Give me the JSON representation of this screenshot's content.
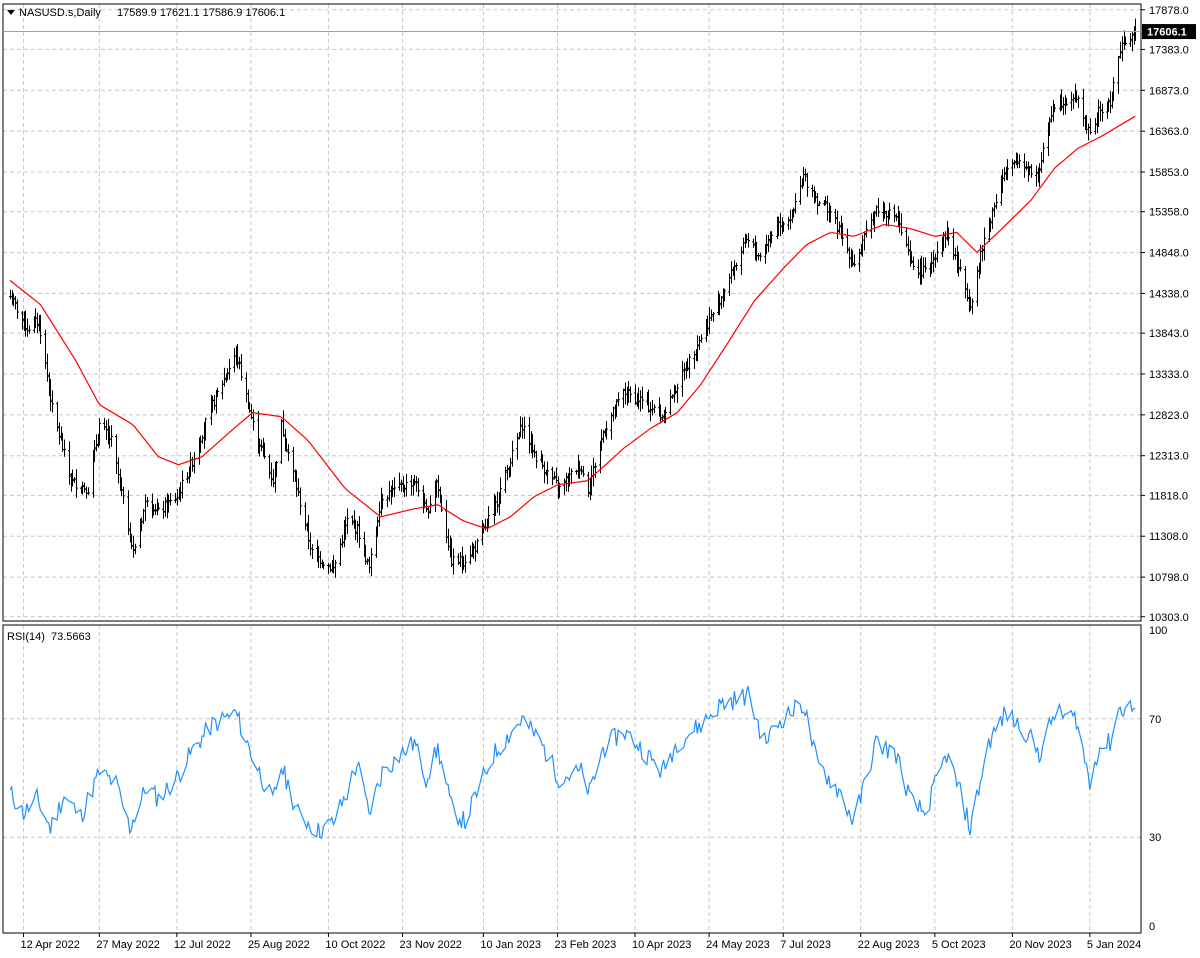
{
  "colors": {
    "background": "#ffffff",
    "grid": "#c8c8c8",
    "bars": "#000000",
    "ma_line": "#ff0000",
    "rsi_line": "#1e90ff",
    "price_tag_bg": "#000000",
    "price_tag_text": "#ffffff"
  },
  "header": {
    "menu_icon": "triangle-down-icon",
    "symbol": "NASUSD.s,Daily",
    "ohlc": "17589.9 17621.1 17586.9 17606.1"
  },
  "chart_data": [
    {
      "type": "ohlc",
      "symbol": "NASUSD.s",
      "timeframe": "Daily",
      "price_ticks": [
        "17878.0",
        "17383.0",
        "16873.0",
        "16363.0",
        "15853.0",
        "15358.0",
        "14848.0",
        "14338.0",
        "13843.0",
        "13333.0",
        "12823.0",
        "12313.0",
        "11818.0",
        "11308.0",
        "10798.0",
        "10303.0"
      ],
      "ylim": [
        10250,
        17950
      ],
      "current_price": "17606.1",
      "x_ticks": [
        "12 Apr 2022",
        "27 May 2022",
        "12 Jul 2022",
        "25 Aug 2022",
        "10 Oct 2022",
        "23 Nov 2022",
        "10 Jan 2023",
        "23 Feb 2023",
        "10 Apr 2023",
        "24 May 2023",
        "7 Jul 2023",
        "22 Aug 2023",
        "5 Oct 2023",
        "20 Nov 2023",
        "5 Jan 2024"
      ],
      "close_anchors": [
        [
          "2022-04-04",
          14300
        ],
        [
          "2022-04-14",
          13900
        ],
        [
          "2022-04-21",
          14000
        ],
        [
          "2022-04-29",
          12900
        ],
        [
          "2022-05-10",
          12000
        ],
        [
          "2022-05-20",
          11900
        ],
        [
          "2022-05-27",
          12700
        ],
        [
          "2022-06-03",
          12500
        ],
        [
          "2022-06-16",
          11100
        ],
        [
          "2022-06-24",
          11800
        ],
        [
          "2022-07-01",
          11600
        ],
        [
          "2022-07-12",
          11800
        ],
        [
          "2022-07-22",
          12300
        ],
        [
          "2022-08-01",
          12900
        ],
        [
          "2022-08-16",
          13600
        ],
        [
          "2022-08-26",
          12700
        ],
        [
          "2022-09-07",
          12000
        ],
        [
          "2022-09-12",
          12700
        ],
        [
          "2022-09-20",
          12000
        ],
        [
          "2022-09-30",
          11100
        ],
        [
          "2022-10-13",
          10900
        ],
        [
          "2022-10-21",
          11500
        ],
        [
          "2022-10-27",
          11400
        ],
        [
          "2022-11-03",
          10900
        ],
        [
          "2022-11-10",
          11800
        ],
        [
          "2022-11-30",
          12000
        ],
        [
          "2022-12-07",
          11600
        ],
        [
          "2022-12-13",
          12000
        ],
        [
          "2022-12-22",
          11000
        ],
        [
          "2022-12-29",
          11000
        ],
        [
          "2023-01-06",
          11200
        ],
        [
          "2023-01-17",
          11700
        ],
        [
          "2023-02-02",
          12700
        ],
        [
          "2023-02-10",
          12300
        ],
        [
          "2023-02-24",
          11900
        ],
        [
          "2023-03-08",
          12200
        ],
        [
          "2023-03-13",
          11900
        ],
        [
          "2023-03-22",
          12600
        ],
        [
          "2023-04-03",
          13100
        ],
        [
          "2023-04-14",
          13000
        ],
        [
          "2023-04-26",
          12800
        ],
        [
          "2023-05-05",
          13200
        ],
        [
          "2023-05-19",
          13800
        ],
        [
          "2023-05-31",
          14300
        ],
        [
          "2023-06-15",
          15000
        ],
        [
          "2023-06-23",
          14800
        ],
        [
          "2023-07-03",
          15200
        ],
        [
          "2023-07-12",
          15300
        ],
        [
          "2023-07-19",
          15800
        ],
        [
          "2023-07-27",
          15500
        ],
        [
          "2023-08-03",
          15400
        ],
        [
          "2023-08-18",
          14700
        ],
        [
          "2023-08-31",
          15400
        ],
        [
          "2023-09-12",
          15300
        ],
        [
          "2023-09-21",
          14700
        ],
        [
          "2023-09-29",
          14600
        ],
        [
          "2023-10-12",
          15100
        ],
        [
          "2023-10-20",
          14600
        ],
        [
          "2023-10-26",
          14200
        ],
        [
          "2023-11-03",
          15000
        ],
        [
          "2023-11-14",
          15800
        ],
        [
          "2023-11-24",
          16000
        ],
        [
          "2023-12-05",
          15800
        ],
        [
          "2023-12-14",
          16700
        ],
        [
          "2023-12-28",
          16800
        ],
        [
          "2024-01-05",
          16300
        ],
        [
          "2024-01-10",
          16600
        ],
        [
          "2024-01-17",
          16700
        ],
        [
          "2024-01-22",
          17300
        ],
        [
          "2024-01-26",
          17500
        ],
        [
          "2024-02-01",
          17606.1
        ]
      ],
      "ma_anchors": [
        [
          "2022-04-04",
          14500
        ],
        [
          "2022-04-22",
          14200
        ],
        [
          "2022-05-13",
          13500
        ],
        [
          "2022-05-27",
          12950
        ],
        [
          "2022-06-16",
          12700
        ],
        [
          "2022-07-01",
          12300
        ],
        [
          "2022-07-13",
          12200
        ],
        [
          "2022-07-27",
          12300
        ],
        [
          "2022-08-12",
          12600
        ],
        [
          "2022-08-26",
          12850
        ],
        [
          "2022-09-12",
          12800
        ],
        [
          "2022-09-28",
          12500
        ],
        [
          "2022-10-20",
          11900
        ],
        [
          "2022-11-10",
          11550
        ],
        [
          "2022-11-30",
          11650
        ],
        [
          "2022-12-14",
          11700
        ],
        [
          "2022-12-29",
          11500
        ],
        [
          "2023-01-12",
          11400
        ],
        [
          "2023-01-26",
          11550
        ],
        [
          "2023-02-09",
          11800
        ],
        [
          "2023-02-23",
          11950
        ],
        [
          "2023-03-13",
          12000
        ],
        [
          "2023-04-03",
          12400
        ],
        [
          "2023-04-19",
          12650
        ],
        [
          "2023-05-05",
          12850
        ],
        [
          "2023-05-19",
          13200
        ],
        [
          "2023-06-05",
          13750
        ],
        [
          "2023-06-20",
          14250
        ],
        [
          "2023-07-07",
          14650
        ],
        [
          "2023-07-21",
          14950
        ],
        [
          "2023-08-04",
          15100
        ],
        [
          "2023-08-18",
          15050
        ],
        [
          "2023-09-05",
          15200
        ],
        [
          "2023-09-20",
          15150
        ],
        [
          "2023-10-05",
          15050
        ],
        [
          "2023-10-18",
          15100
        ],
        [
          "2023-10-30",
          14850
        ],
        [
          "2023-11-14",
          15150
        ],
        [
          "2023-12-01",
          15500
        ],
        [
          "2023-12-15",
          15900
        ],
        [
          "2023-12-29",
          16150
        ],
        [
          "2024-01-12",
          16300
        ],
        [
          "2024-02-01",
          16550
        ]
      ]
    },
    {
      "type": "line",
      "name": "RSI(14)",
      "value_label": "73.5663",
      "y_ticks": [
        "100",
        "70",
        "30",
        "0"
      ],
      "ylim": [
        0,
        100
      ],
      "anchors": [
        [
          "2022-04-04",
          45
        ],
        [
          "2022-04-12",
          38
        ],
        [
          "2022-04-20",
          43
        ],
        [
          "2022-04-28",
          33
        ],
        [
          "2022-05-06",
          44
        ],
        [
          "2022-05-16",
          37
        ],
        [
          "2022-05-27",
          52
        ],
        [
          "2022-06-06",
          48
        ],
        [
          "2022-06-14",
          33
        ],
        [
          "2022-06-24",
          47
        ],
        [
          "2022-07-01",
          43
        ],
        [
          "2022-07-12",
          50
        ],
        [
          "2022-07-22",
          60
        ],
        [
          "2022-08-02",
          68
        ],
        [
          "2022-08-16",
          72
        ],
        [
          "2022-08-26",
          57
        ],
        [
          "2022-09-07",
          42
        ],
        [
          "2022-09-12",
          54
        ],
        [
          "2022-09-22",
          38
        ],
        [
          "2022-10-04",
          32
        ],
        [
          "2022-10-13",
          35
        ],
        [
          "2022-10-21",
          45
        ],
        [
          "2022-10-27",
          55
        ],
        [
          "2022-11-03",
          38
        ],
        [
          "2022-11-11",
          52
        ],
        [
          "2022-11-22",
          58
        ],
        [
          "2022-11-30",
          62
        ],
        [
          "2022-12-07",
          50
        ],
        [
          "2022-12-14",
          60
        ],
        [
          "2022-12-22",
          40
        ],
        [
          "2022-12-30",
          35
        ],
        [
          "2023-01-06",
          45
        ],
        [
          "2023-01-16",
          58
        ],
        [
          "2023-02-02",
          70
        ],
        [
          "2023-02-13",
          62
        ],
        [
          "2023-02-24",
          50
        ],
        [
          "2023-03-09",
          52
        ],
        [
          "2023-03-14",
          45
        ],
        [
          "2023-03-22",
          60
        ],
        [
          "2023-04-03",
          66
        ],
        [
          "2023-04-14",
          60
        ],
        [
          "2023-04-26",
          52
        ],
        [
          "2023-05-05",
          62
        ],
        [
          "2023-05-19",
          68
        ],
        [
          "2023-05-31",
          75
        ],
        [
          "2023-06-16",
          78
        ],
        [
          "2023-06-26",
          62
        ],
        [
          "2023-07-06",
          70
        ],
        [
          "2023-07-19",
          75
        ],
        [
          "2023-07-27",
          55
        ],
        [
          "2023-08-10",
          45
        ],
        [
          "2023-08-18",
          35
        ],
        [
          "2023-08-31",
          62
        ],
        [
          "2023-09-12",
          58
        ],
        [
          "2023-09-21",
          42
        ],
        [
          "2023-09-29",
          38
        ],
        [
          "2023-10-12",
          58
        ],
        [
          "2023-10-20",
          45
        ],
        [
          "2023-10-26",
          33
        ],
        [
          "2023-11-06",
          62
        ],
        [
          "2023-11-16",
          72
        ],
        [
          "2023-11-29",
          65
        ],
        [
          "2023-12-06",
          58
        ],
        [
          "2023-12-15",
          72
        ],
        [
          "2023-12-28",
          70
        ],
        [
          "2024-01-05",
          48
        ],
        [
          "2024-01-10",
          60
        ],
        [
          "2024-01-17",
          62
        ],
        [
          "2024-01-22",
          73
        ],
        [
          "2024-01-29",
          74
        ],
        [
          "2024-02-01",
          73.5663
        ]
      ]
    }
  ]
}
